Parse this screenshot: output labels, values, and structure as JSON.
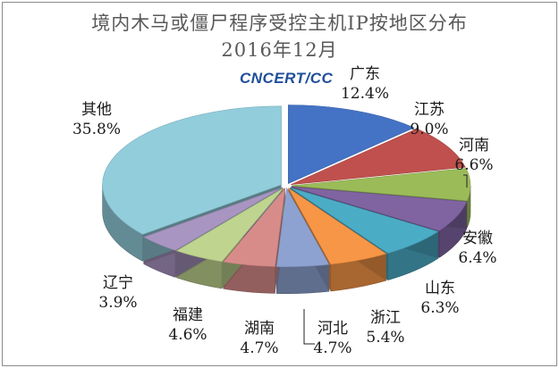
{
  "chart_data": {
    "type": "pie",
    "title": "境内木马或僵尸程序受控主机IP按地区分布",
    "subtitle": "2016年12月",
    "watermark": "CNCERT/CC",
    "categories": [
      "广东",
      "江苏",
      "河南",
      "安徽",
      "山东",
      "浙江",
      "河北",
      "湖南",
      "福建",
      "辽宁",
      "其他"
    ],
    "values": [
      12.4,
      9.0,
      6.6,
      6.4,
      6.3,
      5.4,
      4.7,
      4.7,
      4.6,
      3.9,
      35.8
    ],
    "value_labels": [
      "12.4%",
      "9.0%",
      "6.6%",
      "6.4%",
      "6.3%",
      "5.4%",
      "4.7%",
      "4.7%",
      "4.6%",
      "3.9%",
      "35.8%"
    ],
    "colors": [
      "#4472c4",
      "#c0504d",
      "#9bbb59",
      "#8064a2",
      "#4bacc6",
      "#f79646",
      "#8da2d0",
      "#d88c8a",
      "#bfd48f",
      "#a995c1",
      "#92cddc"
    ],
    "style": "3d-exploded-pie",
    "legend": "none"
  }
}
